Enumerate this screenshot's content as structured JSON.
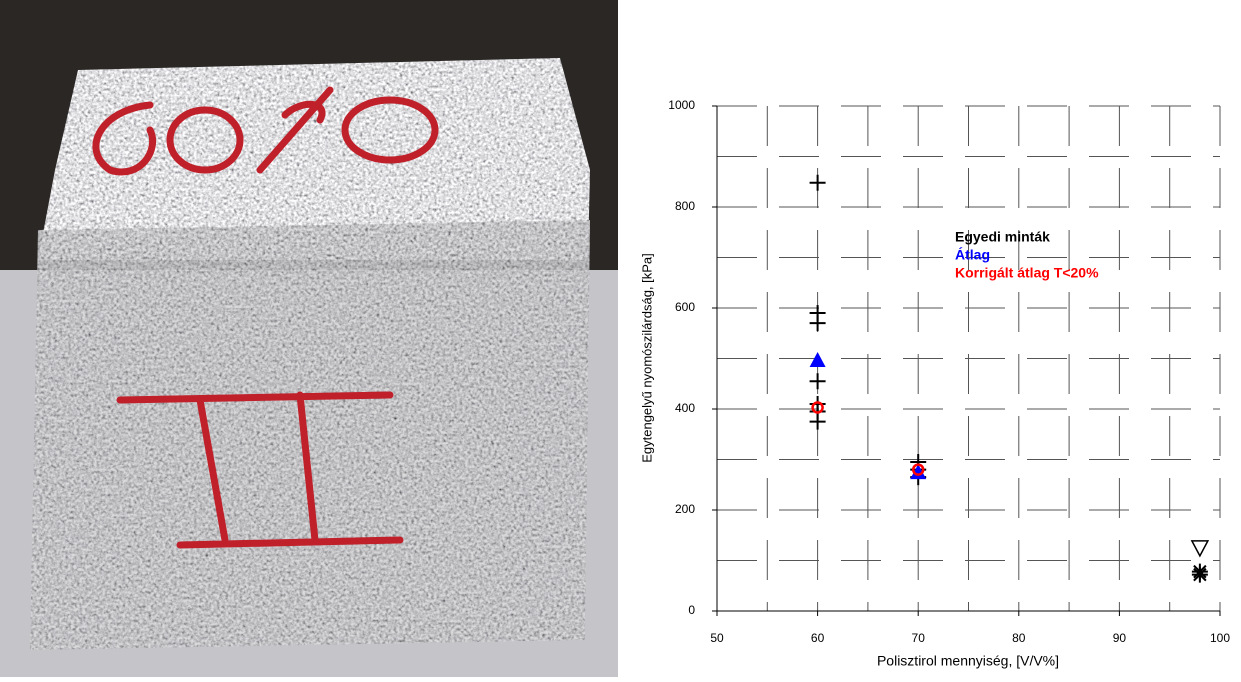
{
  "chart_data": {
    "type": "scatter",
    "xlabel": "Polisztirol mennyiség, [V/V%]",
    "ylabel": "Egytengelyű nyomószilárdság, [kPa]",
    "xlim": [
      50,
      100
    ],
    "ylim": [
      0,
      1000
    ],
    "xticks": [
      50,
      60,
      70,
      80,
      90,
      100
    ],
    "yticks": [
      0,
      200,
      400,
      600,
      800,
      1000
    ],
    "xgrid": [
      55,
      60,
      65,
      70,
      75,
      80,
      85,
      90,
      95,
      100
    ],
    "ygrid": [
      100,
      200,
      300,
      400,
      500,
      600,
      700,
      800,
      900,
      1000
    ],
    "grid": true,
    "series": [
      {
        "name": "Egyedi minták",
        "color": "#000000",
        "x": [
          60,
          60,
          60,
          60,
          60,
          60,
          60,
          70,
          70,
          70,
          98,
          98,
          98
        ],
        "values": [
          848,
          590,
          570,
          455,
          410,
          395,
          375,
          295,
          280,
          265,
          78,
          72,
          125
        ],
        "marker": [
          "plus",
          "plus",
          "plus",
          "plus",
          "plus",
          "plus",
          "plus",
          "plus",
          "plus",
          "plus",
          "star",
          "star",
          "triangle-down"
        ]
      },
      {
        "name": "Átlag",
        "color": "#0000ff",
        "x": [
          60,
          70
        ],
        "values": [
          497,
          275
        ],
        "marker": [
          "triangle-up",
          "triangle-up"
        ]
      },
      {
        "name": "Korrigált átlag T<20%",
        "color": "#ff0000",
        "x": [
          60,
          70
        ],
        "values": [
          403,
          280
        ],
        "marker": [
          "circle",
          "circle"
        ]
      }
    ]
  }
}
